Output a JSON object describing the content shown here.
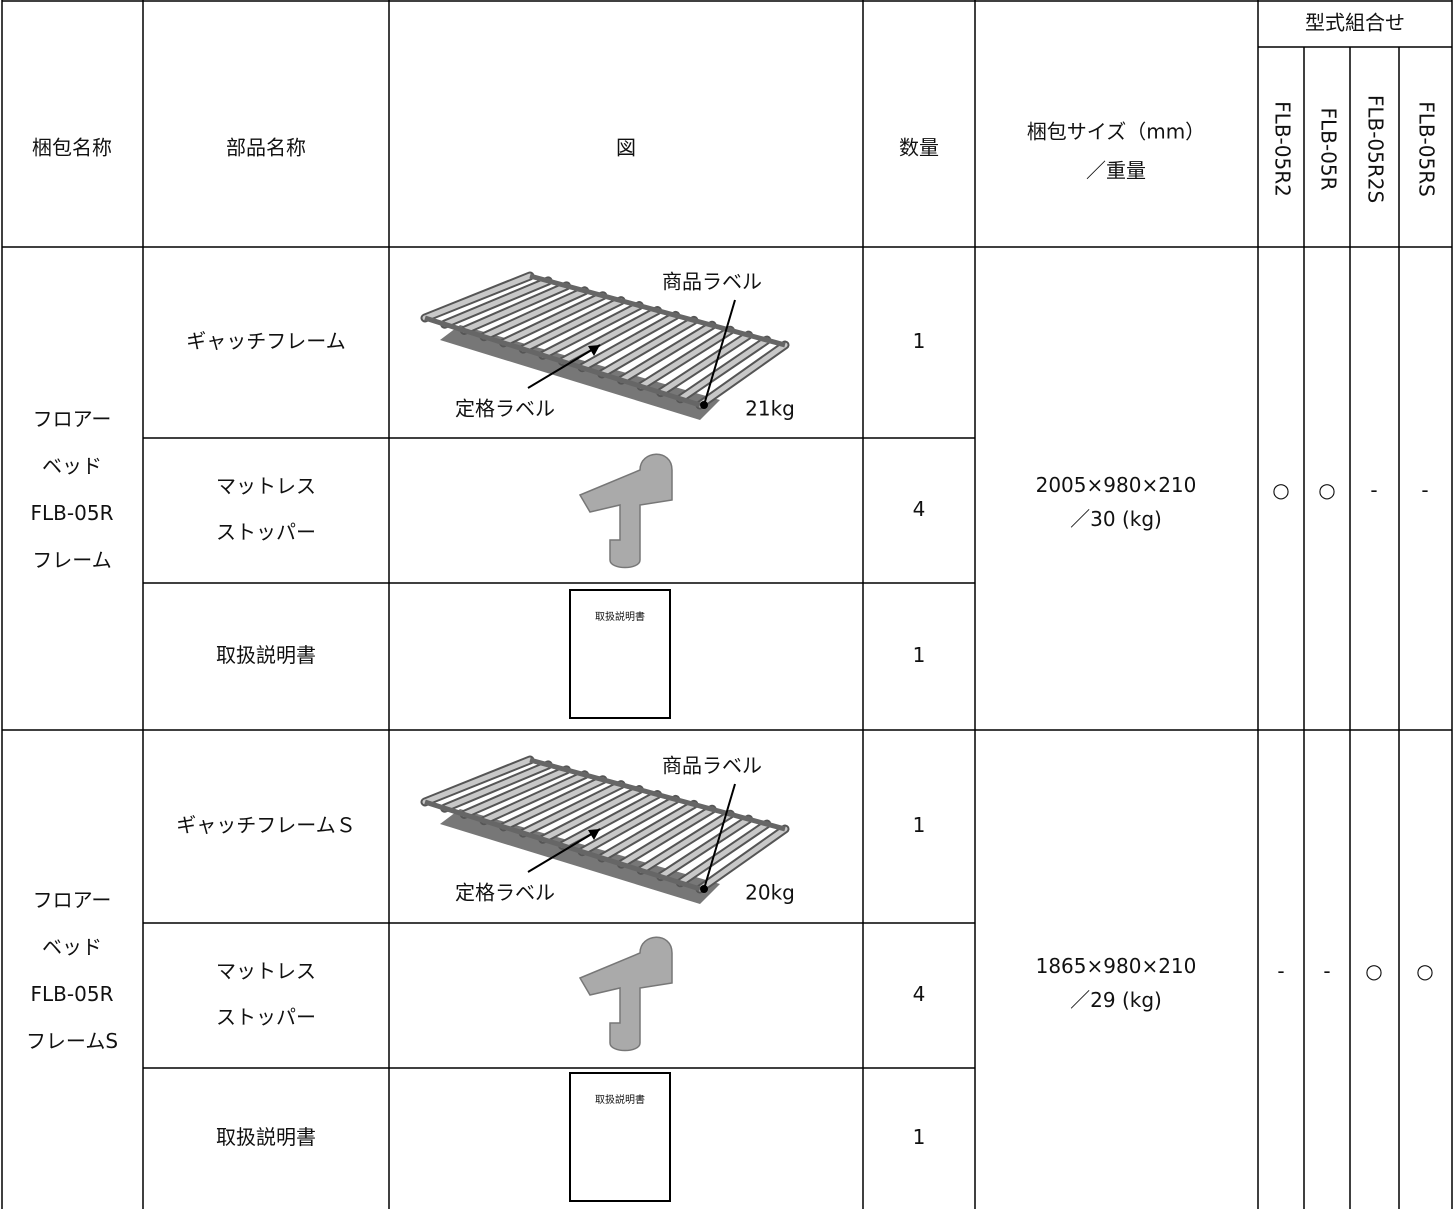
{
  "table": {
    "header": {
      "package_name": "梱包名称",
      "part_name": "部品名称",
      "figure": "図",
      "quantity": "数量",
      "size_weight": [
        "梱包サイズ（mm）",
        "／重量"
      ],
      "model_group": "型式組合せ",
      "models": [
        "FLB-05R2",
        "FLB-05R",
        "FLB-05R2S",
        "FLB-05RS"
      ]
    },
    "groups": [
      {
        "package_name": [
          "フロアー",
          "ベッド",
          "FLB-05R",
          "フレーム"
        ],
        "size_weight": [
          "2005×980×210",
          "／30 (kg)"
        ],
        "compat": [
          "○",
          "○",
          "-",
          "-"
        ],
        "parts": [
          {
            "name": [
              "ギャッチフレーム"
            ],
            "figure": {
              "product_label": "商品ラベル",
              "rating_label": "定格ラベル",
              "weight": "21kg"
            },
            "quantity": 1
          },
          {
            "name": [
              "マットレス",
              "ストッパー"
            ],
            "quantity": 4
          },
          {
            "name": [
              "取扱説明書"
            ],
            "figure": {
              "cover": "取扱説明書"
            },
            "quantity": 1
          }
        ]
      },
      {
        "package_name": [
          "フロアー",
          "ベッド",
          "FLB-05R",
          "フレームS"
        ],
        "size_weight": [
          "1865×980×210",
          "／29 (kg)"
        ],
        "compat": [
          "-",
          "-",
          "○",
          "○"
        ],
        "parts": [
          {
            "name": [
              "ギャッチフレームＳ"
            ],
            "figure": {
              "product_label": "商品ラベル",
              "rating_label": "定格ラベル",
              "weight": "20kg"
            },
            "quantity": 1
          },
          {
            "name": [
              "マットレス",
              "ストッパー"
            ],
            "quantity": 4
          },
          {
            "name": [
              "取扱説明書"
            ],
            "figure": {
              "cover": "取扱説明書"
            },
            "quantity": 1
          }
        ]
      }
    ]
  }
}
